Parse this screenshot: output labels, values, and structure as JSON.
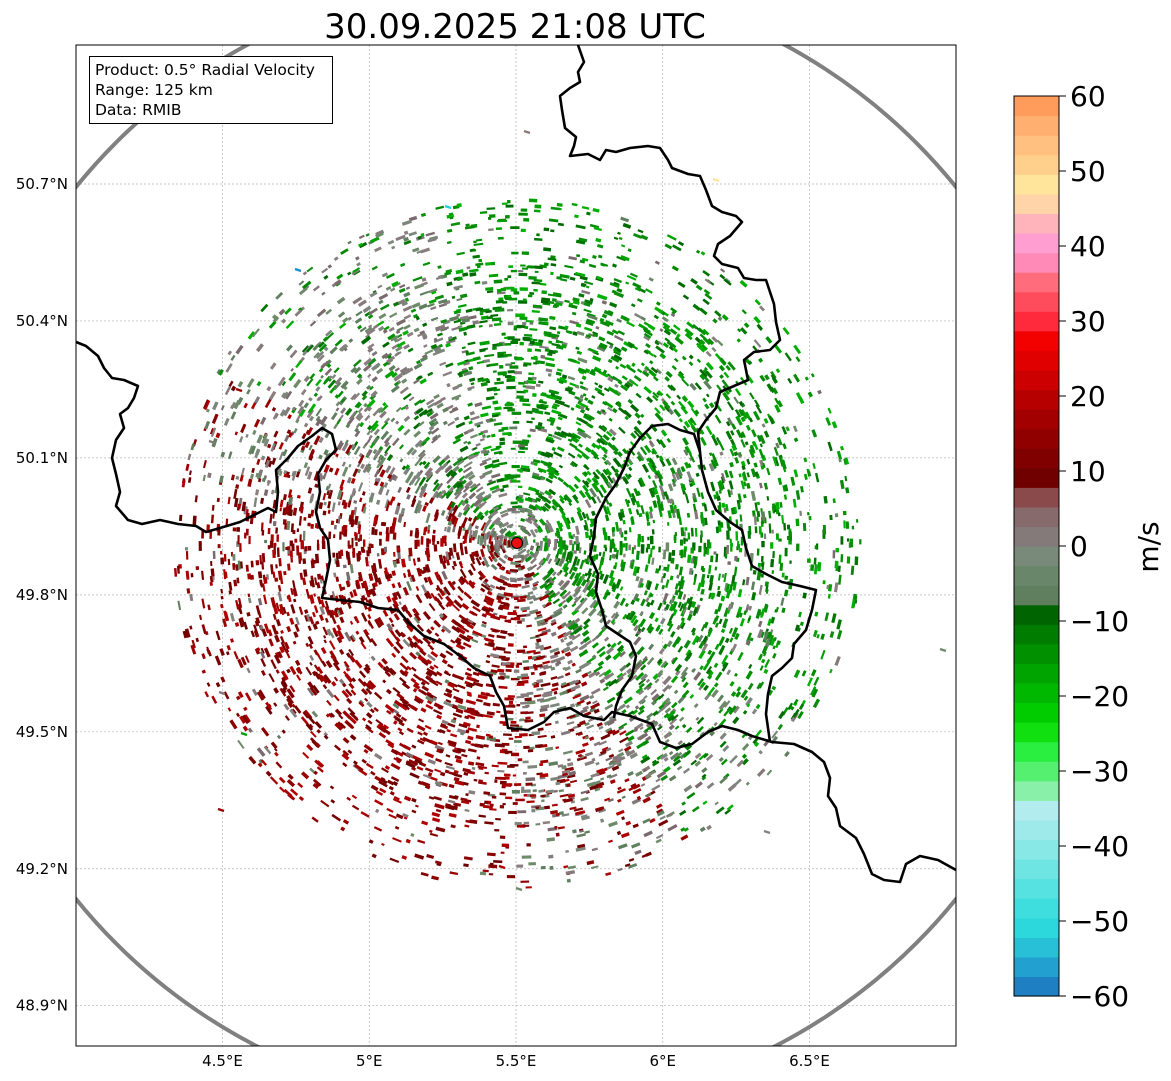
{
  "title": "30.09.2025 21:08 UTC",
  "info": {
    "product": "Product: 0.5° Radial Velocity",
    "range": "Range: 125 km",
    "data": "Data: RMIB"
  },
  "axes": {
    "lon_ticks": [
      "4.5°E",
      "5°E",
      "5.5°E",
      "6°E",
      "6.5°E"
    ],
    "lat_ticks": [
      "50.7°N",
      "50.4°N",
      "50.1°N",
      "49.8°N",
      "49.5°N",
      "49.2°N",
      "48.9°N"
    ],
    "lon_range": [
      4.0,
      7.0
    ],
    "lat_range": [
      48.8,
      50.98
    ]
  },
  "radar": {
    "lon": 5.505,
    "lat": 49.915,
    "range_km": 125
  },
  "colorbar": {
    "label": "m/s",
    "ticks": [
      "60",
      "50",
      "40",
      "30",
      "20",
      "10",
      "0",
      "−10",
      "−20",
      "−30",
      "−40",
      "−50",
      "−60"
    ],
    "min": -60,
    "max": 60,
    "colors": [
      "#1f7fc3",
      "#22a0d0",
      "#28c0d6",
      "#2dd8dc",
      "#3fdede",
      "#55e2e0",
      "#6fe5e3",
      "#88e8e6",
      "#9ee9e9",
      "#b3ecee",
      "#88f0a8",
      "#55f070",
      "#2aee40",
      "#10e010",
      "#00cc00",
      "#00b800",
      "#00a400",
      "#009000",
      "#007c00",
      "#006400",
      "#5f7f5f",
      "#6a866a",
      "#7a8a7a",
      "#857a7a",
      "#866a6c",
      "#8a4a4c",
      "#700000",
      "#800000",
      "#900000",
      "#a20000",
      "#b60000",
      "#cc0000",
      "#e00000",
      "#f30000",
      "#ff2a3c",
      "#ff4c5c",
      "#ff6c7c",
      "#ff8ab8",
      "#ff9ed0",
      "#ffb4bc",
      "#ffd4a8",
      "#ffe49c",
      "#ffd08c",
      "#ffc080",
      "#ffb070",
      "#ff9c5c"
    ]
  },
  "colors": {
    "approaching": "#008a00",
    "receding": "#8b0000",
    "zero": "#6e8a6a",
    "border": "#000000",
    "range_ring": "#808080",
    "radar_dot": "#e81010"
  }
}
